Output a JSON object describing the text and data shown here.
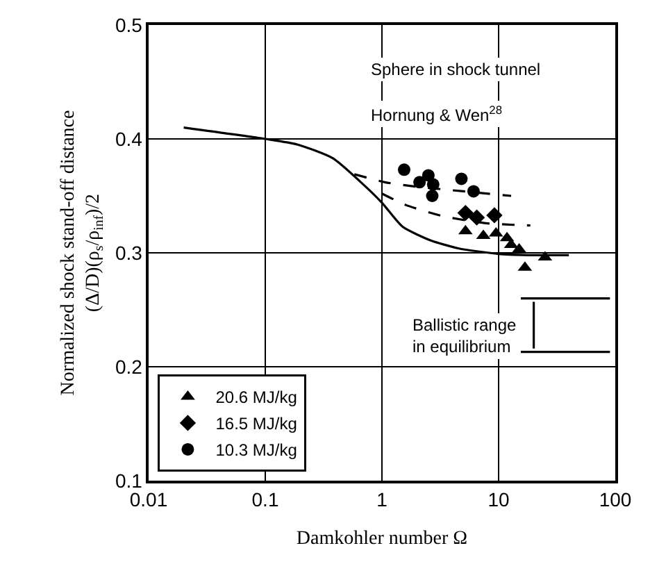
{
  "chart_data": {
    "type": "line",
    "xlabel": "Damkohler number Ω",
    "ylabel": "Normalized shock stand-off distance\n(Δ/D)(ρ$_{s}$/ρ$_{inf}$)/2",
    "log": "x",
    "grid": true,
    "legend": "bottom left",
    "xlim": [
      0.01,
      100
    ],
    "xticks": [
      0.01,
      0.1,
      1,
      10,
      100
    ],
    "ylim": [
      0.1,
      0.5
    ],
    "yticks": [
      0.1,
      0.2,
      0.3,
      0.4,
      0.5
    ],
    "series": [
      {
        "name": "20.6 MJ/kg",
        "type": "scatter",
        "marker": "triangle",
        "color": "#000000",
        "x": [
          5.2,
          7.4,
          9.5,
          11.8,
          12.8,
          15,
          16.8,
          25
        ],
        "values": [
          0.319,
          0.315,
          0.317,
          0.313,
          0.307,
          0.303,
          0.287,
          0.296
        ]
      },
      {
        "name": "16.5 MJ/kg",
        "type": "scatter",
        "marker": "diamond",
        "color": "#000000",
        "x": [
          5.2,
          6.5,
          9.2
        ],
        "values": [
          0.335,
          0.331,
          0.333
        ]
      },
      {
        "name": "10.3 MJ/kg",
        "type": "scatter",
        "marker": "circle",
        "color": "#000000",
        "x": [
          1.55,
          2.1,
          2.5,
          2.75,
          2.7,
          4.8,
          6.1
        ],
        "values": [
          0.373,
          0.362,
          0.368,
          0.36,
          0.35,
          0.365,
          0.354
        ]
      },
      {
        "line_style": "solid",
        "color": "#000000",
        "x": [
          0.02,
          0.1,
          0.19,
          0.38,
          0.66,
          1,
          1.5,
          2.6,
          4.5,
          10,
          17.8,
          40
        ],
        "values": [
          0.41,
          0.4,
          0.395,
          0.383,
          0.362,
          0.344,
          0.323,
          0.311,
          0.304,
          0.299,
          0.298,
          0.298
        ]
      },
      {
        "line_style": "dashed",
        "color": "#000000",
        "x": [
          1,
          1.6,
          3.4,
          7.8,
          18.7
        ],
        "values": [
          0.352,
          0.342,
          0.332,
          0.326,
          0.324
        ]
      },
      {
        "line_style": "dashed",
        "color": "#000000",
        "x": [
          0.58,
          1.06,
          2,
          5,
          12.8
        ],
        "values": [
          0.369,
          0.362,
          0.358,
          0.354,
          0.35
        ]
      },
      {
        "line_style": "solid",
        "color": "#000000",
        "x": [
          15.5,
          90
        ],
        "values": [
          0.26,
          0.26
        ]
      },
      {
        "line_style": "solid",
        "color": "#000000",
        "x": [
          15.5,
          90
        ],
        "values": [
          0.213,
          0.213
        ]
      },
      {
        "line_style": "solid",
        "color": "#000000",
        "x": [
          20,
          20
        ],
        "values": [
          0.257,
          0.216
        ]
      }
    ],
    "annotations": [
      "Sphere in shock tunnel",
      "Hornung & Wen$^{28}$",
      "Ballistic range\nin equilibrium"
    ]
  }
}
